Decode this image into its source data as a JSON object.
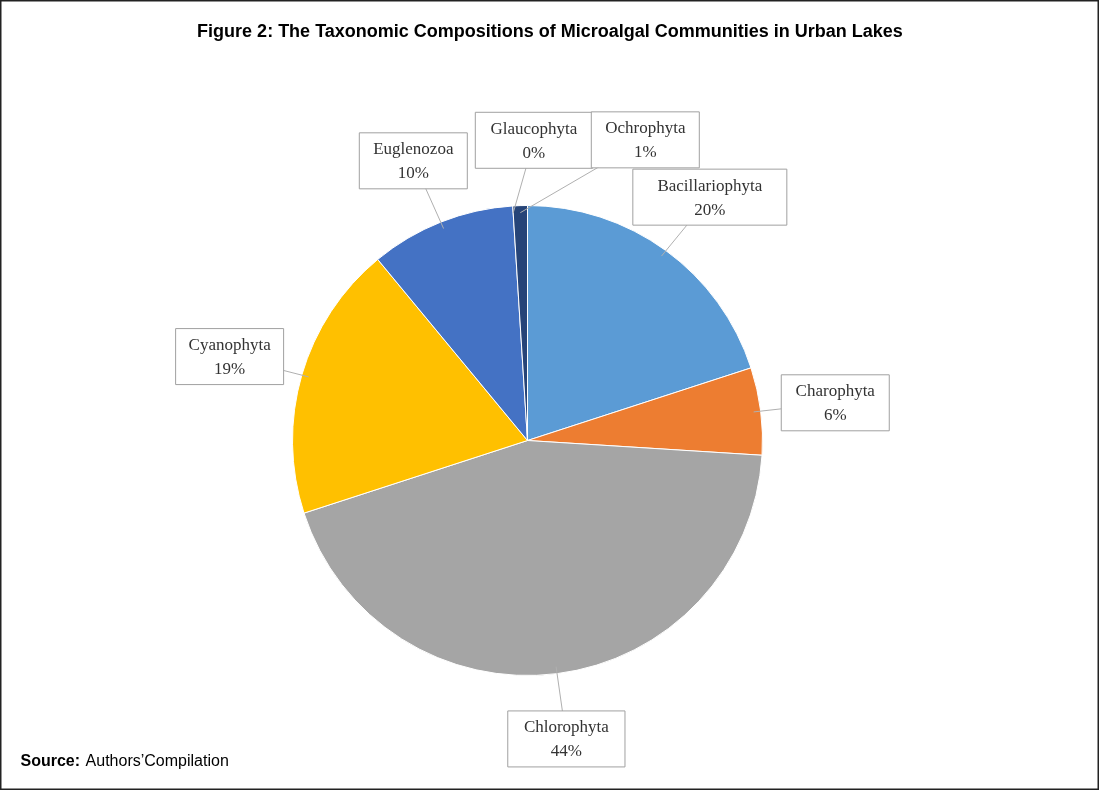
{
  "chart_data": {
    "type": "pie",
    "title": "Figure 2: The Taxonomic Compositions of Microalgal Communities in Urban Lakes",
    "categories": [
      "Bacillariophyta",
      "Charophyta",
      "Chlorophyta",
      "Cyanophyta",
      "Euglenozoa",
      "Glaucophyta",
      "Ochrophyta"
    ],
    "values": [
      20,
      6,
      44,
      19,
      10,
      0,
      1
    ],
    "colors": [
      "#5b9bd5",
      "#ed7d31",
      "#a5a5a5",
      "#ffc000",
      "#4472c4",
      "#70ad47",
      "#264478"
    ],
    "value_labels": [
      "20%",
      "6%",
      "44%",
      "19%",
      "10%",
      "0%",
      "1%"
    ],
    "annotations": [
      "Source: Authors’Compilation"
    ]
  }
}
